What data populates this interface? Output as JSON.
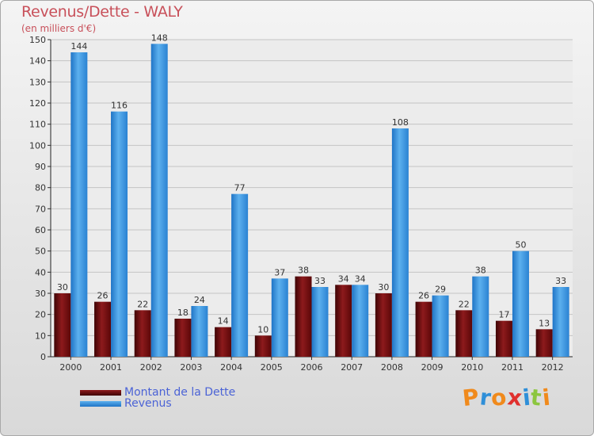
{
  "chart_data": {
    "type": "bar",
    "title": "Revenus/Dette - WALY",
    "subtitle": "(en milliers d'€)",
    "categories": [
      "2000",
      "2001",
      "2002",
      "2003",
      "2004",
      "2005",
      "2006",
      "2007",
      "2008",
      "2009",
      "2010",
      "2011",
      "2012"
    ],
    "series": [
      {
        "name": "Montant de la Dette",
        "color": "#7a0e10",
        "values": [
          30,
          26,
          22,
          18,
          14,
          10,
          38,
          34,
          30,
          26,
          22,
          17,
          13
        ]
      },
      {
        "name": "Revenus",
        "color": "#3f9ee6",
        "values": [
          144,
          116,
          148,
          24,
          77,
          37,
          33,
          34,
          108,
          29,
          38,
          50,
          33
        ]
      }
    ],
    "ylim": [
      0,
      150
    ],
    "yticks": [
      0,
      10,
      20,
      30,
      40,
      50,
      60,
      70,
      80,
      90,
      100,
      110,
      120,
      130,
      140,
      150
    ],
    "grid": true,
    "legend_position": "bottom-left"
  },
  "logo": {
    "text": "Proxiti",
    "colors": [
      "#f08a1c",
      "#2f8fd8",
      "#f08a1c",
      "#e0302e",
      "#2f8fd8",
      "#8cc63f",
      "#f08a1c"
    ]
  }
}
